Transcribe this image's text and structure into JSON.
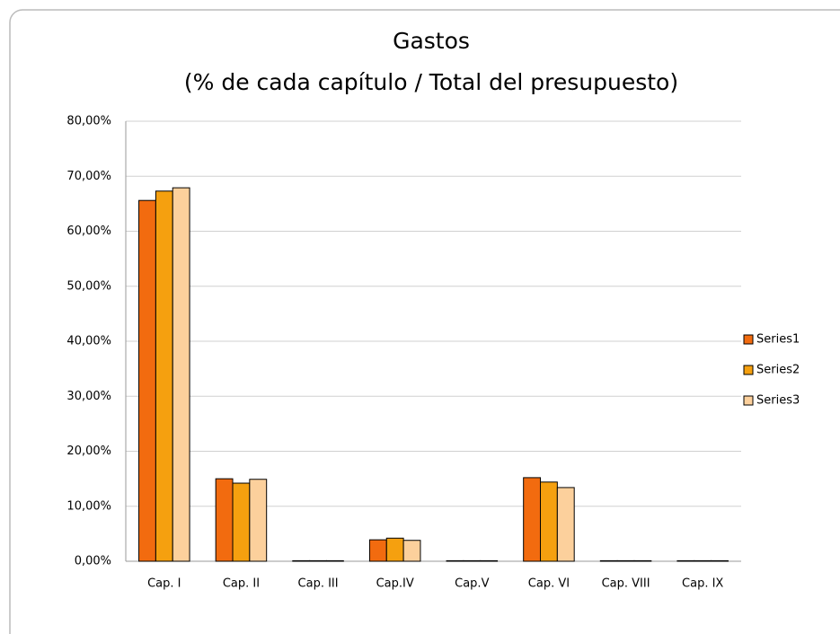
{
  "chart_data": {
    "type": "bar",
    "title": [
      "Gastos",
      "(% de cada capítulo / Total del presupuesto)"
    ],
    "categories": [
      "Cap. I",
      "Cap. II",
      "Cap. III",
      "Cap.IV",
      "Cap.V",
      "Cap. VI",
      "Cap. VIII",
      "Cap. IX"
    ],
    "series": [
      {
        "name": "Series1",
        "color": "#f26b0f",
        "values": [
          65.6,
          15.0,
          0.1,
          3.9,
          0.1,
          15.2,
          0.1,
          0.1
        ]
      },
      {
        "name": "Series2",
        "color": "#f5a00f",
        "values": [
          67.3,
          14.2,
          0.1,
          4.2,
          0.1,
          14.4,
          0.1,
          0.1
        ]
      },
      {
        "name": "Series3",
        "color": "#fcd09c",
        "values": [
          67.9,
          14.9,
          0.1,
          3.8,
          0.1,
          13.4,
          0.1,
          0.1
        ]
      }
    ],
    "ylim": [
      0,
      80
    ],
    "yticks": [
      {
        "value": 0,
        "label": "0,00%"
      },
      {
        "value": 10,
        "label": "10,00%"
      },
      {
        "value": 20,
        "label": "20,00%"
      },
      {
        "value": 30,
        "label": "30,00%"
      },
      {
        "value": 40,
        "label": "40,00%"
      },
      {
        "value": 50,
        "label": "50,00%"
      },
      {
        "value": 60,
        "label": "60,00%"
      },
      {
        "value": 70,
        "label": "70,00%"
      },
      {
        "value": 80,
        "label": "80,00%"
      }
    ],
    "grid": true,
    "legend": "right"
  }
}
